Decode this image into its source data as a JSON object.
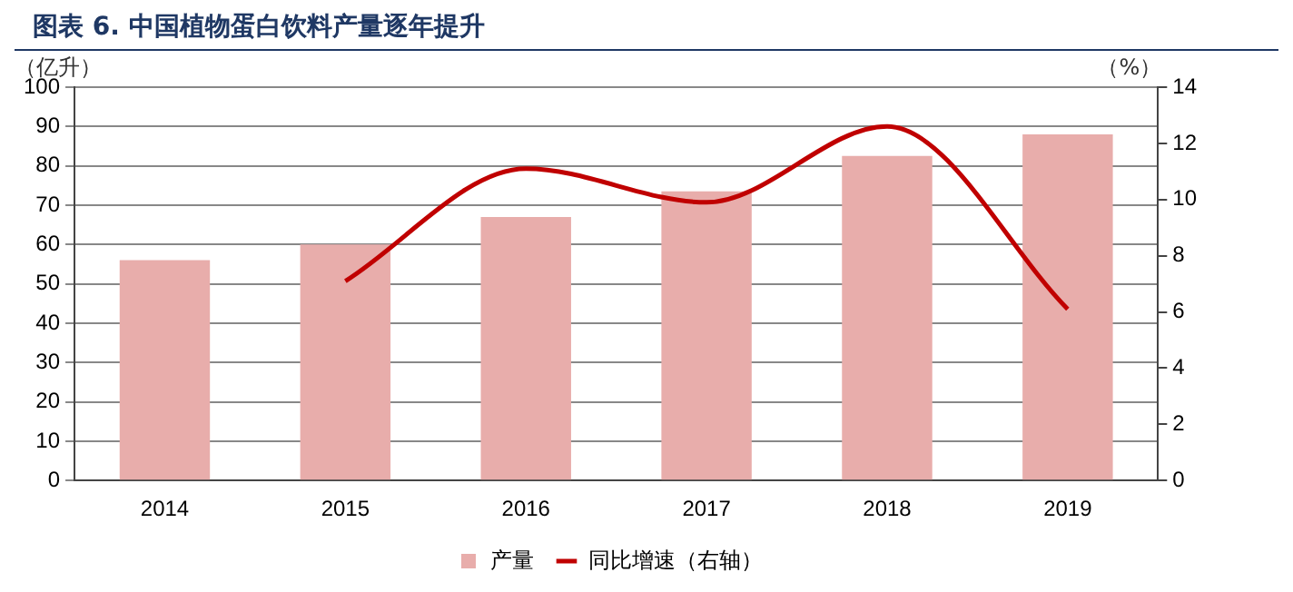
{
  "chart_data": {
    "type": "bar",
    "title": "图表 6. 中国植物蛋白饮料产量逐年提升",
    "ylabel": "（亿升）",
    "y2label": "（%）",
    "categories": [
      "2014",
      "2015",
      "2016",
      "2017",
      "2018",
      "2019"
    ],
    "series": [
      {
        "name": "产量",
        "color": "#e8adab",
        "values": [
          56,
          60,
          67,
          73.5,
          82.5,
          88
        ]
      },
      {
        "name": "同比增速（右轴）",
        "type": "line",
        "axis": "y2",
        "color": "#c00000",
        "values": [
          null,
          7.1,
          11.1,
          9.9,
          12.6,
          6.1
        ]
      }
    ],
    "ylim": [
      0,
      100
    ],
    "yticks": [
      0,
      10,
      20,
      30,
      40,
      50,
      60,
      70,
      80,
      90,
      100
    ],
    "y2lim": [
      0,
      14
    ],
    "y2ticks": [
      0,
      2,
      4,
      6,
      8,
      10,
      12,
      14
    ],
    "grid": "y",
    "legend": "bottom",
    "marker": "none"
  }
}
